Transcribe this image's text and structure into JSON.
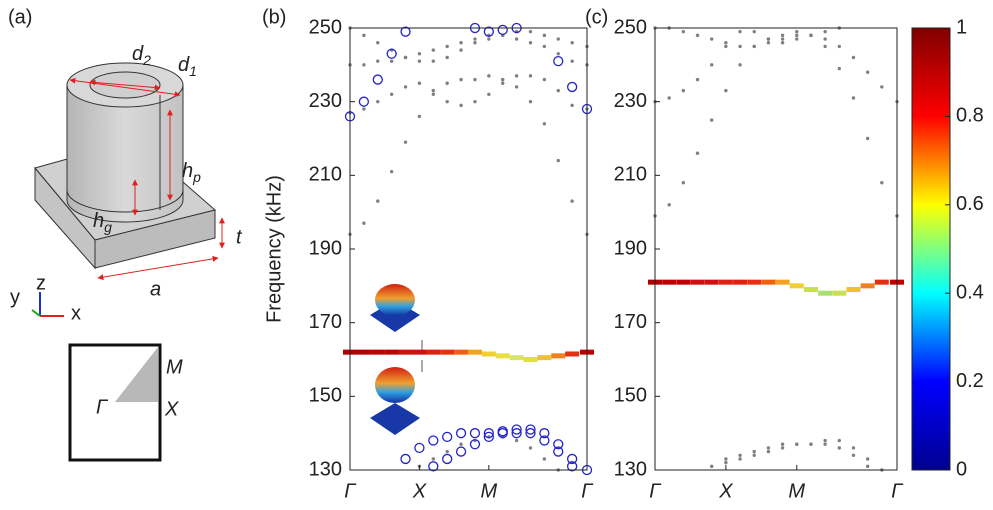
{
  "schematic": {
    "panel_label": "(a)",
    "d2": {
      "base": "d",
      "sub": "2"
    },
    "d1": {
      "base": "d",
      "sub": "1"
    },
    "hp": {
      "base": "h",
      "sub": "p"
    },
    "hg": {
      "base": "h",
      "sub": "g"
    },
    "t": "t",
    "a": "a",
    "axis_x": "x",
    "axis_y": "y",
    "axis_z": "z",
    "M": "M",
    "Gamma": "Γ",
    "X": "X"
  },
  "chart_data": [
    {
      "type": "scatter",
      "panel_label": "(b)",
      "y_label": "Frequency (kHz)",
      "x": [
        0,
        0.2,
        0.4,
        0.6,
        0.8,
        1.0,
        1.2,
        1.4,
        1.6,
        1.8,
        2.0,
        2.2,
        2.4,
        2.6,
        2.8,
        3.0,
        3.2,
        3.414
      ],
      "xlim": [
        0,
        3.414
      ],
      "xticks": [
        {
          "value": 0,
          "label": "Γ"
        },
        {
          "value": 1,
          "label": "X"
        },
        {
          "value": 2,
          "label": "M"
        },
        {
          "value": 3.414,
          "label": "Γ"
        }
      ],
      "ylim": [
        130,
        250
      ],
      "yticks": [
        130,
        150,
        170,
        190,
        210,
        230,
        250
      ],
      "series": [
        {
          "marker": "dot",
          "color": "#7f7f7f",
          "values": [
            194,
            197,
            203,
            211,
            219,
            226,
            232,
            235,
            236,
            236,
            237,
            236,
            234,
            230,
            224,
            214,
            203,
            194
          ]
        },
        {
          "marker": "dot",
          "color": "#7f7f7f",
          "values": [
            227,
            228,
            230,
            232,
            234,
            235,
            233,
            230,
            229,
            230,
            232,
            235,
            237,
            237,
            236,
            233,
            229,
            228
          ]
        },
        {
          "marker": "dot",
          "color": "#7f7f7f",
          "values": [
            240,
            240,
            241,
            241,
            242,
            243,
            244,
            245,
            246,
            247,
            248,
            248,
            247,
            246,
            245,
            243,
            241,
            240
          ]
        },
        {
          "marker": "dot",
          "color": "#7f7f7f",
          "values": [
            250,
            248,
            246,
            244,
            242,
            241,
            241,
            242,
            244,
            246,
            247,
            248,
            249,
            249,
            248,
            247,
            246,
            245
          ]
        },
        {
          "marker": "dot",
          "color": "#7f7f7f",
          "values": [
            null,
            null,
            null,
            null,
            null,
            131,
            133,
            135,
            137,
            138,
            139,
            139,
            138,
            136,
            133,
            130,
            null,
            null
          ]
        },
        {
          "marker": "circle",
          "color": "#2222cc",
          "values": [
            226,
            230,
            236,
            243,
            249,
            null,
            null,
            null,
            null,
            null,
            null,
            null,
            null,
            null,
            null,
            241,
            234,
            228
          ]
        },
        {
          "marker": "circle",
          "color": "#2222cc",
          "values": [
            null,
            null,
            null,
            null,
            null,
            null,
            null,
            null,
            null,
            250,
            249,
            249.5,
            250,
            null,
            null,
            null,
            null,
            null
          ]
        },
        {
          "marker": "circle",
          "color": "#2222cc",
          "values": [
            null,
            null,
            null,
            null,
            133,
            136,
            138,
            139,
            140,
            140,
            140,
            140.5,
            141,
            140,
            138,
            135,
            131,
            null
          ]
        },
        {
          "marker": "circle",
          "color": "#2222cc",
          "values": [
            null,
            null,
            null,
            null,
            null,
            null,
            131,
            133,
            135,
            137,
            139,
            140,
            140,
            141,
            140,
            137,
            133,
            130
          ]
        },
        {
          "marker": "square",
          "values": [
            162,
            162,
            162,
            162,
            162,
            162,
            162,
            162,
            162,
            162,
            161.5,
            161,
            160.5,
            160,
            160.5,
            161,
            161.5,
            162
          ],
          "colors": [
            "#b00000",
            "#b00000",
            "#c00000",
            "#c00000",
            "#d01010",
            "#d01010",
            "#e02010",
            "#e83010",
            "#f06010",
            "#f8a020",
            "#f0d030",
            "#e8e040",
            "#d8e858",
            "#e0e040",
            "#f0c030",
            "#f08020",
            "#e03010",
            "#c00000"
          ]
        }
      ]
    },
    {
      "type": "scatter",
      "panel_label": "(c)",
      "x": [
        0,
        0.2,
        0.4,
        0.6,
        0.8,
        1.0,
        1.2,
        1.4,
        1.6,
        1.8,
        2.0,
        2.2,
        2.4,
        2.6,
        2.8,
        3.0,
        3.2,
        3.414
      ],
      "xlim": [
        0,
        3.414
      ],
      "xticks": [
        {
          "value": 0,
          "label": "Γ"
        },
        {
          "value": 1,
          "label": "X"
        },
        {
          "value": 2,
          "label": "M"
        },
        {
          "value": 3.414,
          "label": "Γ"
        }
      ],
      "ylim": [
        130,
        250
      ],
      "yticks": [
        130,
        150,
        170,
        190,
        210,
        230,
        250
      ],
      "series": [
        {
          "marker": "dot",
          "color": "#7f7f7f",
          "values": [
            199,
            202,
            208,
            216,
            225,
            233,
            240,
            245,
            247,
            248,
            249,
            248,
            245,
            239,
            231,
            220,
            208,
            199
          ]
        },
        {
          "marker": "dot",
          "color": "#7f7f7f",
          "values": [
            230,
            231,
            233,
            236,
            240,
            245,
            249,
            249,
            247,
            246,
            247,
            248,
            247,
            245,
            242,
            238,
            234,
            230
          ]
        },
        {
          "marker": "dot",
          "color": "#7f7f7f",
          "values": [
            250,
            250,
            249,
            248,
            247,
            246,
            245,
            245,
            246,
            247,
            248,
            248,
            249,
            250,
            null,
            null,
            null,
            null
          ]
        },
        {
          "marker": "dot",
          "color": "#7f7f7f",
          "values": [
            null,
            null,
            null,
            null,
            131,
            133,
            134,
            135,
            136,
            137,
            137,
            137,
            138,
            138,
            136,
            133,
            130,
            null
          ]
        },
        {
          "marker": "dot",
          "color": "#7f7f7f",
          "values": [
            null,
            null,
            null,
            null,
            null,
            132,
            133,
            134,
            135,
            136,
            137,
            137,
            137,
            136,
            134,
            131,
            null,
            null
          ]
        },
        {
          "marker": "square",
          "values": [
            181,
            181,
            181,
            181,
            181,
            181,
            181,
            181,
            181,
            181,
            180,
            179,
            178,
            178,
            179,
            180,
            181,
            181
          ],
          "colors": [
            "#b00000",
            "#c00000",
            "#c00000",
            "#d01010",
            "#d01010",
            "#e02010",
            "#e02010",
            "#e83010",
            "#f06010",
            "#f8a020",
            "#f0d030",
            "#c8e050",
            "#a8e070",
            "#c8e050",
            "#f0c030",
            "#f08020",
            "#e03010",
            "#c00000"
          ]
        }
      ],
      "colorbar": {
        "colors": [
          "#00008f",
          "#0000ff",
          "#00ffff",
          "#ffff00",
          "#ff0000",
          "#800000"
        ],
        "lim": [
          0,
          1
        ],
        "ticks": [
          0,
          0.2,
          0.4,
          0.6,
          0.8,
          1
        ]
      }
    }
  ]
}
